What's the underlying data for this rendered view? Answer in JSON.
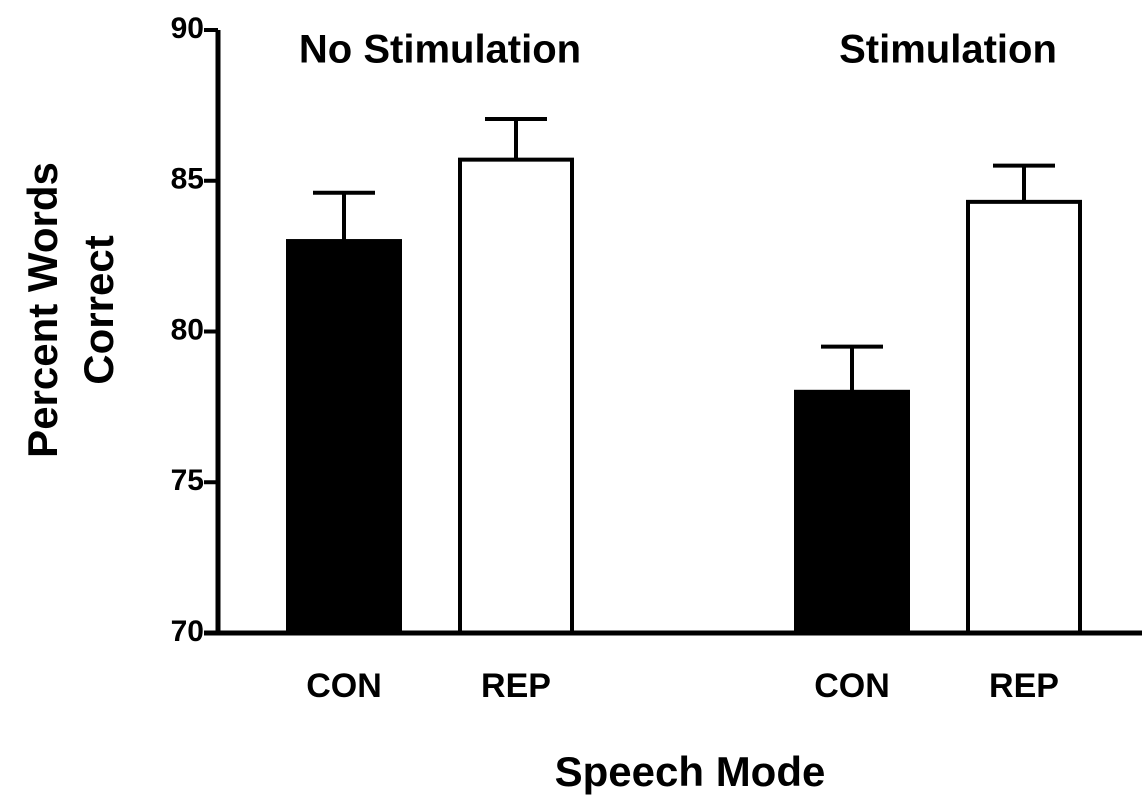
{
  "chart_data": {
    "type": "bar",
    "categories": [
      "No Stimulation",
      "Stimulation"
    ],
    "series": [
      {
        "name": "CON",
        "color": "#000000",
        "values": [
          83.0,
          78.0
        ],
        "errors": [
          1.6,
          1.5
        ]
      },
      {
        "name": "REP",
        "color": "#ffffff",
        "values": [
          85.7,
          84.3
        ],
        "errors": [
          1.35,
          1.2
        ]
      }
    ],
    "x_label": "Speech Mode",
    "y_label": [
      "Percent Words",
      "Correct"
    ],
    "ylim": [
      70,
      90
    ],
    "yticks": [
      70,
      75,
      80,
      85,
      90
    ],
    "grid": false
  }
}
